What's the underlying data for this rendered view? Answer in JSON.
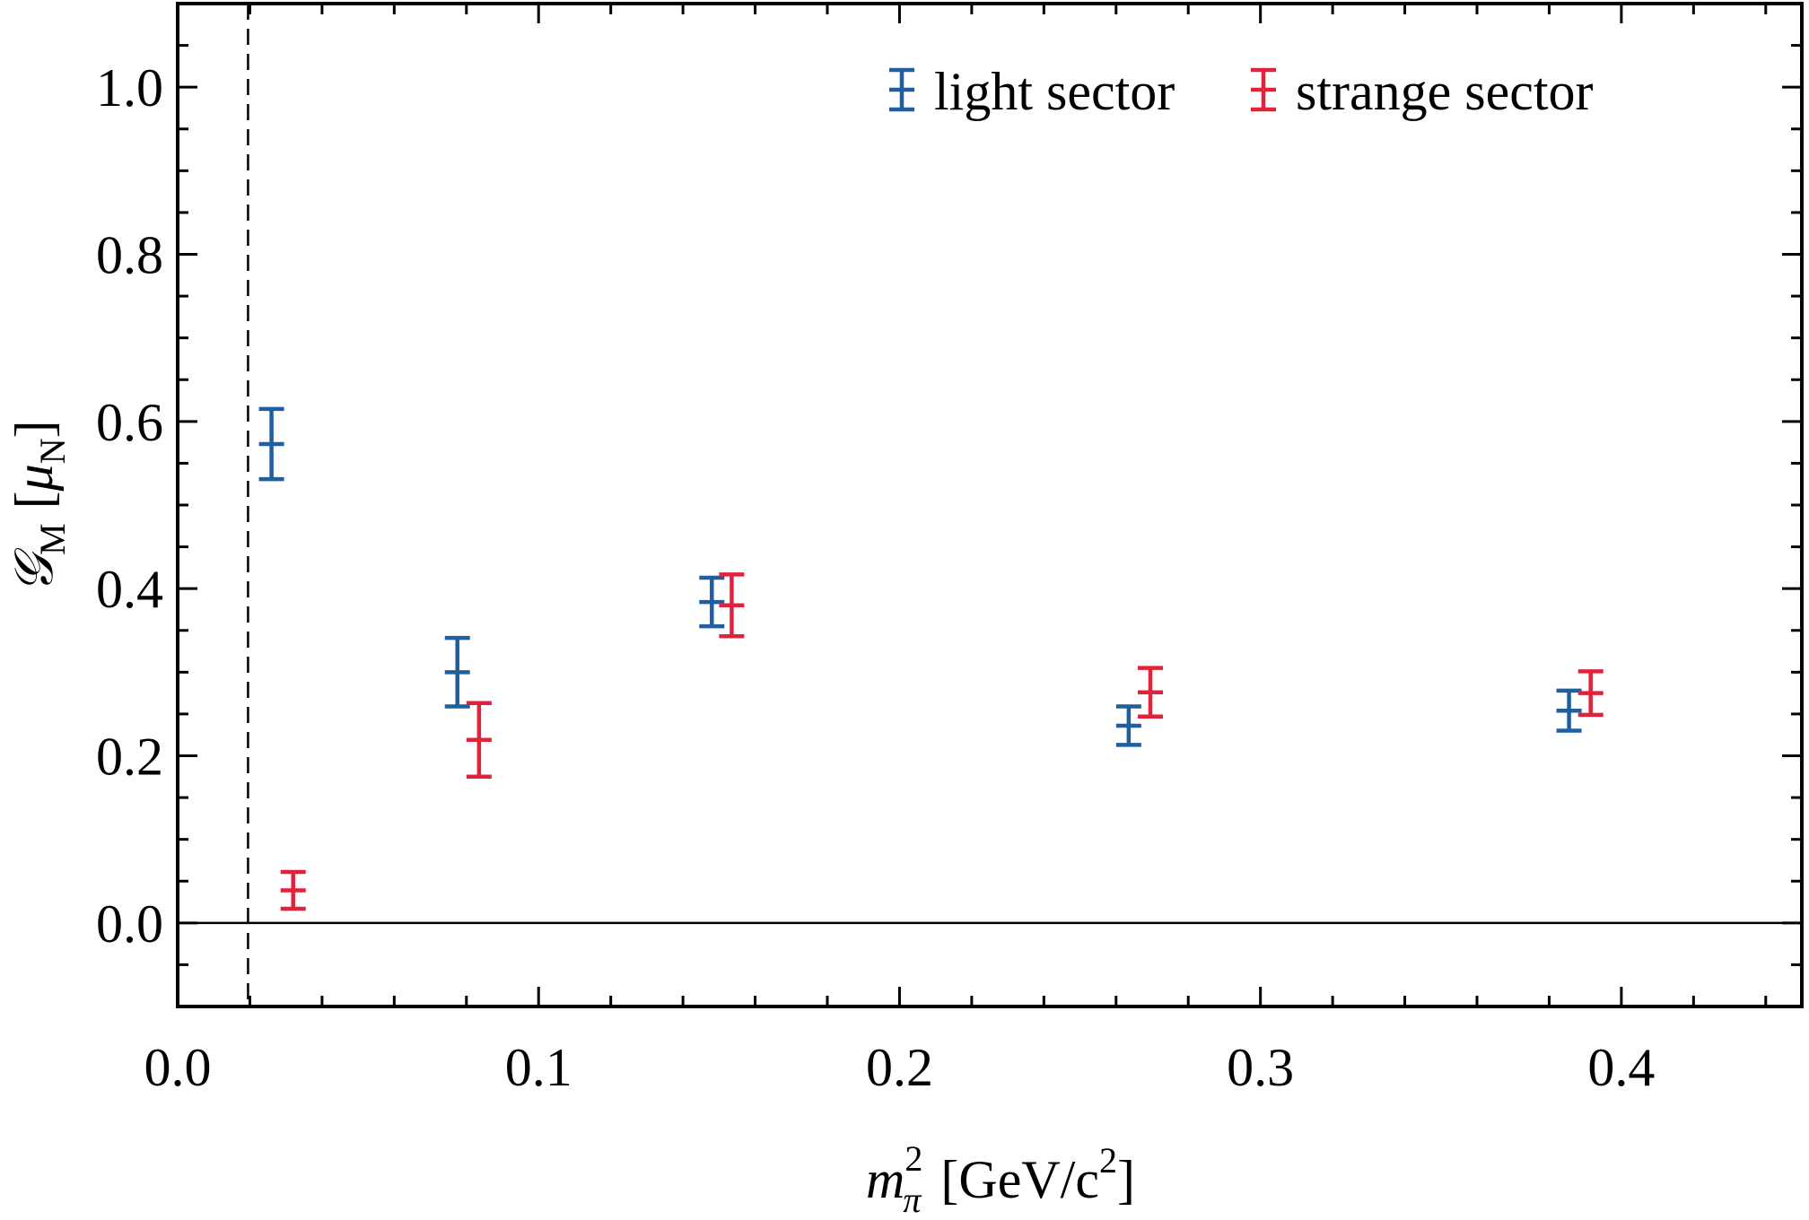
{
  "chart_data": {
    "type": "scatter",
    "xlim": [
      0.0,
      0.45
    ],
    "ylim": [
      -0.1,
      1.1
    ],
    "x_ticks": [
      "0.0",
      "0.1",
      "0.2",
      "0.3",
      "0.4"
    ],
    "y_ticks": [
      "0.0",
      "0.2",
      "0.4",
      "0.6",
      "0.8",
      "1.0"
    ],
    "x_tick_values": [
      0.0,
      0.1,
      0.2,
      0.3,
      0.4
    ],
    "y_tick_values": [
      0.0,
      0.2,
      0.4,
      0.6,
      0.8,
      1.0
    ],
    "xlabel": {
      "base": "m",
      "sub": "π",
      "sup": "2",
      "unit": "[GeV/c",
      "unit_sup": "2",
      "unit_close": "]"
    },
    "ylabel": {
      "base": "𝒢",
      "sub": "M",
      "unit_open": "[",
      "unit_base": "μ",
      "unit_sub": "N",
      "unit_close": "]"
    },
    "vertical_reference_x": 0.0195,
    "horizontal_reference_y": 0.0,
    "legend_position": "top-right",
    "grid": false,
    "series": [
      {
        "name": "light sector",
        "color": "#1f5fa0",
        "points": [
          {
            "x": 0.026,
            "y": 0.573,
            "yerr": 0.042
          },
          {
            "x": 0.0775,
            "y": 0.3,
            "yerr": 0.041
          },
          {
            "x": 0.148,
            "y": 0.384,
            "yerr": 0.029
          },
          {
            "x": 0.2635,
            "y": 0.236,
            "yerr": 0.023
          },
          {
            "x": 0.3855,
            "y": 0.254,
            "yerr": 0.024
          }
        ]
      },
      {
        "name": "strange sector",
        "color": "#e0233a",
        "points": [
          {
            "x": 0.032,
            "y": 0.039,
            "yerr": 0.022
          },
          {
            "x": 0.0835,
            "y": 0.219,
            "yerr": 0.044
          },
          {
            "x": 0.1535,
            "y": 0.38,
            "yerr": 0.037
          },
          {
            "x": 0.2695,
            "y": 0.276,
            "yerr": 0.029
          },
          {
            "x": 0.3915,
            "y": 0.275,
            "yerr": 0.026
          }
        ]
      }
    ]
  }
}
